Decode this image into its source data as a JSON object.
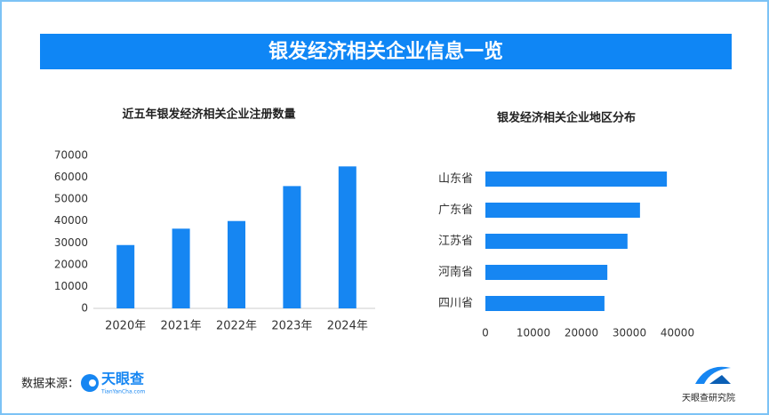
{
  "title": "银发经济相关企业信息一览",
  "chart_data": [
    {
      "type": "bar",
      "orientation": "vertical",
      "title": "近五年银发经济相关企业注册数量",
      "categories": [
        "2020年",
        "2021年",
        "2022年",
        "2023年",
        "2024年"
      ],
      "values": [
        29000,
        36500,
        40000,
        56000,
        65000
      ],
      "color": "#1686f2",
      "ylim": [
        0,
        70000
      ],
      "yticks": [
        0,
        10000,
        20000,
        30000,
        40000,
        50000,
        60000,
        70000
      ],
      "grid": false
    },
    {
      "type": "bar",
      "orientation": "horizontal",
      "title": "银发经济相关企业地区分布",
      "categories": [
        "山东省",
        "广东省",
        "江苏省",
        "河南省",
        "四川省"
      ],
      "values": [
        37800,
        32200,
        29600,
        25400,
        24800
      ],
      "color": "#1686f2",
      "xlim": [
        0,
        40000
      ],
      "xticks": [
        0,
        10000,
        20000,
        30000,
        40000
      ],
      "grid": false
    }
  ],
  "footer": {
    "source_label": "数据来源：",
    "source_logo": "天眼查",
    "source_url": "TianYanCha.com",
    "brand": "天眼查研究院"
  }
}
